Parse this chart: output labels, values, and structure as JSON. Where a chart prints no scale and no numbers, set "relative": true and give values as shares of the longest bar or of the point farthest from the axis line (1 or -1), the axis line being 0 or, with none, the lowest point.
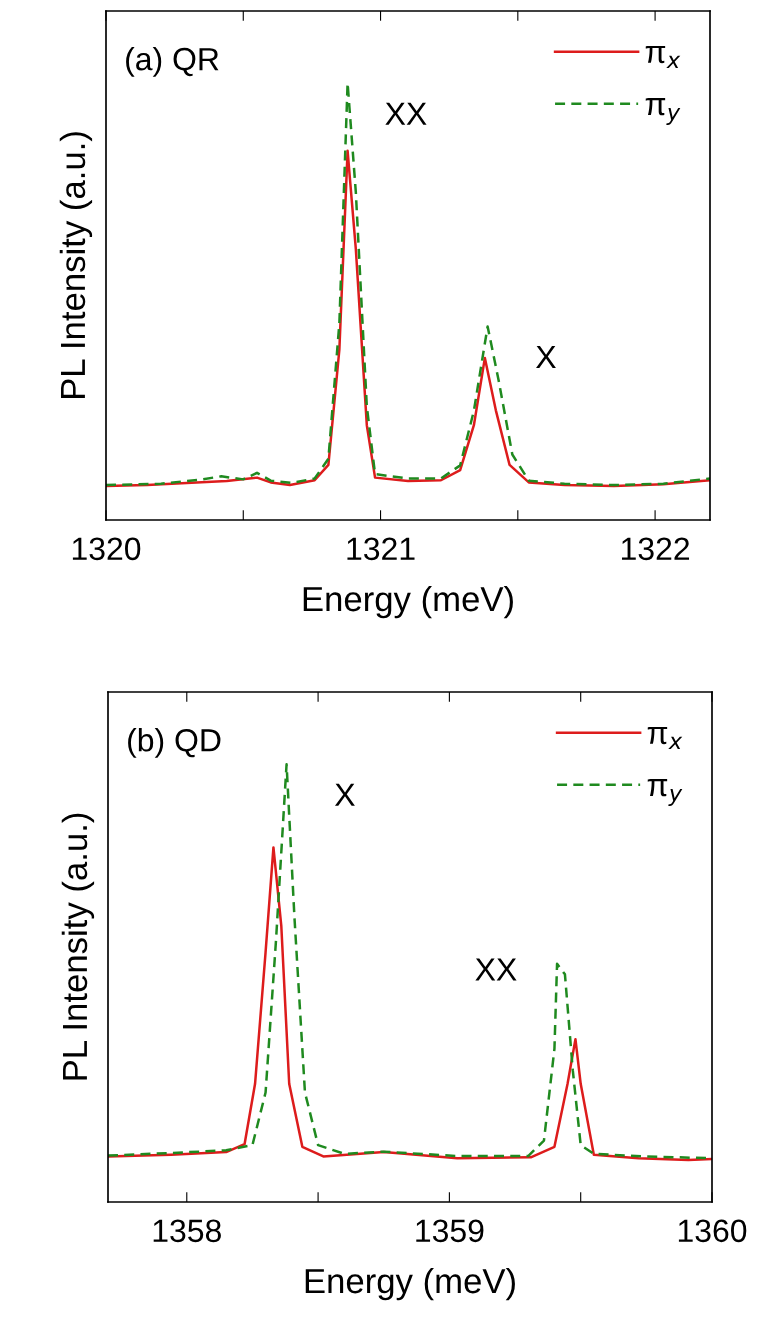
{
  "chart_data": [
    {
      "type": "line",
      "relative": true,
      "xlabel": "Energy (meV)",
      "ylabel": "PL Intensity (a.u.)",
      "xlim": [
        1320,
        1322.2
      ],
      "xticks": [
        1320,
        {
          "value": 1320.5,
          "label": null
        },
        1321,
        {
          "value": 1321.5,
          "label": null
        },
        1322
      ],
      "legend": "top right",
      "grid": false,
      "annotations": [
        "(a) QR",
        {
          "text": "XX",
          "x": 1320.88,
          "y": 1.0
        },
        {
          "text": "X",
          "x": 1321.39,
          "y": 0.443
        }
      ],
      "series": [
        {
          "name": "π$_{x}$",
          "color": "#dd1c1c",
          "line_style": "solid",
          "x": [
            1320.0,
            1320.15,
            1320.33,
            1320.44,
            1320.55,
            1320.6,
            1320.67,
            1320.76,
            1320.81,
            1320.85,
            1320.88,
            1320.91,
            1320.95,
            1320.98,
            1321.1,
            1321.22,
            1321.29,
            1321.34,
            1321.38,
            1321.42,
            1321.47,
            1321.54,
            1321.67,
            1321.85,
            1322.03,
            1322.2
          ],
          "values": [
            0.078,
            0.08,
            0.086,
            0.089,
            0.097,
            0.086,
            0.08,
            0.091,
            0.126,
            0.39,
            0.845,
            0.62,
            0.217,
            0.097,
            0.089,
            0.091,
            0.114,
            0.217,
            0.371,
            0.251,
            0.126,
            0.086,
            0.08,
            0.078,
            0.082,
            0.091
          ]
        },
        {
          "name": "π$_{y}$",
          "color": "#1f8a1f",
          "line_style": "dashed",
          "x": [
            1320.0,
            1320.2,
            1320.35,
            1320.42,
            1320.5,
            1320.55,
            1320.6,
            1320.68,
            1320.76,
            1320.81,
            1320.85,
            1320.88,
            1320.91,
            1320.95,
            1320.98,
            1321.1,
            1321.22,
            1321.29,
            1321.34,
            1321.39,
            1321.43,
            1321.48,
            1321.54,
            1321.67,
            1321.85,
            1322.03,
            1322.2
          ],
          "values": [
            0.08,
            0.083,
            0.093,
            0.1,
            0.093,
            0.108,
            0.09,
            0.085,
            0.095,
            0.14,
            0.45,
            1.0,
            0.75,
            0.26,
            0.105,
            0.095,
            0.095,
            0.125,
            0.25,
            0.443,
            0.32,
            0.15,
            0.09,
            0.083,
            0.08,
            0.083,
            0.095
          ]
        }
      ]
    },
    {
      "type": "line",
      "relative": true,
      "xlabel": "Energy (meV)",
      "ylabel": "PL Intensity (a.u.)",
      "xlim": [
        1357.7,
        1360
      ],
      "xticks": [
        1358,
        {
          "value": 1358.5,
          "label": null
        },
        1359,
        {
          "value": 1359.5,
          "label": null
        },
        1360
      ],
      "legend": "top right",
      "grid": false,
      "annotations": [
        "(b) QD",
        {
          "text": "X",
          "x": 1358.38,
          "y": 1.0
        },
        {
          "text": "XX",
          "x": 1359.41,
          "y": 0.544
        }
      ],
      "series": [
        {
          "name": "π$_{x}$",
          "color": "#dd1c1c",
          "line_style": "solid",
          "x": [
            1357.7,
            1357.94,
            1358.15,
            1358.22,
            1358.26,
            1358.3,
            1358.33,
            1358.36,
            1358.39,
            1358.44,
            1358.52,
            1358.75,
            1359.03,
            1359.31,
            1359.4,
            1359.45,
            1359.48,
            1359.5,
            1359.55,
            1359.72,
            1359.91,
            1360.0
          ],
          "values": [
            0.104,
            0.108,
            0.114,
            0.132,
            0.27,
            0.57,
            0.81,
            0.63,
            0.27,
            0.126,
            0.104,
            0.114,
            0.1,
            0.102,
            0.126,
            0.27,
            0.372,
            0.27,
            0.108,
            0.1,
            0.096,
            0.098
          ]
        },
        {
          "name": "π$_{y}$",
          "color": "#1f8a1f",
          "line_style": "dashed",
          "x": [
            1357.7,
            1357.94,
            1358.15,
            1358.25,
            1358.3,
            1358.34,
            1358.38,
            1358.41,
            1358.45,
            1358.5,
            1358.6,
            1358.75,
            1359.03,
            1359.3,
            1359.36,
            1359.4,
            1359.41,
            1359.44,
            1359.47,
            1359.5,
            1359.55,
            1359.75,
            1360.0
          ],
          "values": [
            0.106,
            0.112,
            0.118,
            0.13,
            0.25,
            0.6,
            1.0,
            0.65,
            0.25,
            0.13,
            0.11,
            0.115,
            0.105,
            0.105,
            0.14,
            0.35,
            0.544,
            0.52,
            0.3,
            0.13,
            0.11,
            0.104,
            0.1
          ]
        }
      ]
    }
  ]
}
